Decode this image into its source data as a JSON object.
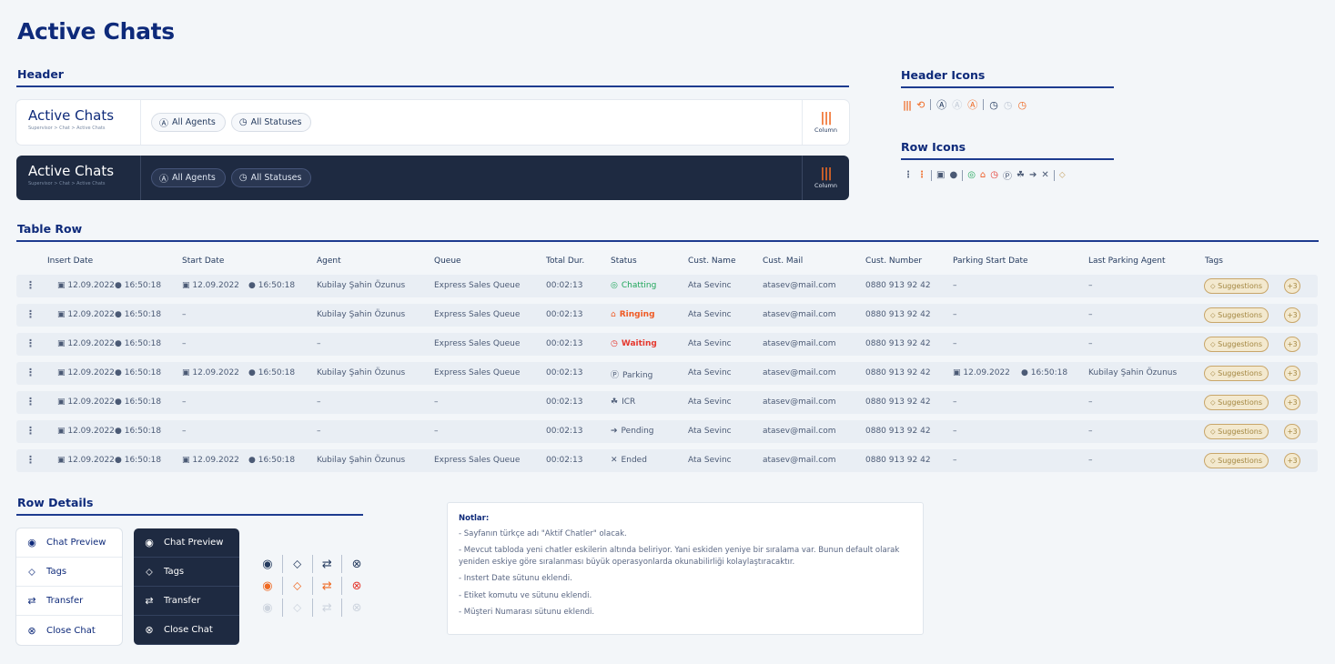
{
  "page_title": "Active Chats",
  "sections": {
    "header": "Header",
    "header_icons": "Header Icons",
    "row_icons": "Row Icons",
    "table_row": "Table Row",
    "row_details": "Row Details"
  },
  "header_card": {
    "title": "Active Chats",
    "breadcrumb": "Supervisor > Chat > Active Chats",
    "chip_agents": "All Agents",
    "chip_statuses": "All Statuses",
    "column_label": "Column"
  },
  "table": {
    "columns": [
      "Insert Date",
      "Start Date",
      "Agent",
      "Queue",
      "Total Dur.",
      "Status",
      "Cust. Name",
      "Cust. Mail",
      "Cust. Number",
      "Parking Start Date",
      "Last Parking Agent",
      "Tags"
    ],
    "rows": [
      {
        "insert_date": "12.09.2022",
        "insert_time": "16:50:18",
        "start_date": "12.09.2022",
        "start_time": "16:50:18",
        "agent": "Kubilay Şahin Özunus",
        "queue": "Express Sales Queue",
        "duration": "00:02:13",
        "status": "Chatting",
        "cust_name": "Ata Sevinc",
        "cust_mail": "atasev@mail.com",
        "cust_number": "0880 913 92 42",
        "parking_start": "–",
        "parking_time": "",
        "last_parking_agent": "–",
        "tag": "Suggestions",
        "more": "+3"
      },
      {
        "insert_date": "12.09.2022",
        "insert_time": "16:50:18",
        "start_date": "–",
        "start_time": "",
        "agent": "Kubilay Şahin Özunus",
        "queue": "Express Sales Queue",
        "duration": "00:02:13",
        "status": "Ringing",
        "cust_name": "Ata Sevinc",
        "cust_mail": "atasev@mail.com",
        "cust_number": "0880 913 92 42",
        "parking_start": "–",
        "parking_time": "",
        "last_parking_agent": "–",
        "tag": "Suggestions",
        "more": "+3"
      },
      {
        "insert_date": "12.09.2022",
        "insert_time": "16:50:18",
        "start_date": "–",
        "start_time": "",
        "agent": "–",
        "queue": "Express Sales Queue",
        "duration": "00:02:13",
        "status": "Waiting",
        "cust_name": "Ata Sevinc",
        "cust_mail": "atasev@mail.com",
        "cust_number": "0880 913 92 42",
        "parking_start": "–",
        "parking_time": "",
        "last_parking_agent": "–",
        "tag": "Suggestions",
        "more": "+3"
      },
      {
        "insert_date": "12.09.2022",
        "insert_time": "16:50:18",
        "start_date": "12.09.2022",
        "start_time": "16:50:18",
        "agent": "Kubilay Şahin Özunus",
        "queue": "Express Sales Queue",
        "duration": "00:02:13",
        "status": "Parking",
        "cust_name": "Ata Sevinc",
        "cust_mail": "atasev@mail.com",
        "cust_number": "0880 913 92 42",
        "parking_start": "12.09.2022",
        "parking_time": "16:50:18",
        "last_parking_agent": "Kubilay Şahin Özunus",
        "tag": "Suggestions",
        "more": "+3"
      },
      {
        "insert_date": "12.09.2022",
        "insert_time": "16:50:18",
        "start_date": "–",
        "start_time": "",
        "agent": "–",
        "queue": "–",
        "duration": "00:02:13",
        "status": "ICR",
        "cust_name": "Ata Sevinc",
        "cust_mail": "atasev@mail.com",
        "cust_number": "0880 913 92 42",
        "parking_start": "–",
        "parking_time": "",
        "last_parking_agent": "–",
        "tag": "Suggestions",
        "more": "+3"
      },
      {
        "insert_date": "12.09.2022",
        "insert_time": "16:50:18",
        "start_date": "–",
        "start_time": "",
        "agent": "–",
        "queue": "–",
        "duration": "00:02:13",
        "status": "Pending",
        "cust_name": "Ata Sevinc",
        "cust_mail": "atasev@mail.com",
        "cust_number": "0880 913 92 42",
        "parking_start": "–",
        "parking_time": "",
        "last_parking_agent": "–",
        "tag": "Suggestions",
        "more": "+3"
      },
      {
        "insert_date": "12.09.2022",
        "insert_time": "16:50:18",
        "start_date": "12.09.2022",
        "start_time": "16:50:18",
        "agent": "Kubilay Şahin Özunus",
        "queue": "Express Sales Queue",
        "duration": "00:02:13",
        "status": "Ended",
        "cust_name": "Ata Sevinc",
        "cust_mail": "atasev@mail.com",
        "cust_number": "0880 913 92 42",
        "parking_start": "–",
        "parking_time": "",
        "last_parking_agent": "–",
        "tag": "Suggestions",
        "more": "+3"
      }
    ]
  },
  "status_styles": {
    "Chatting": {
      "color": "#1fa65a",
      "icon": "chat-bubble-icon"
    },
    "Ringing": {
      "color": "#ef5a24",
      "icon": "bell-icon"
    },
    "Waiting": {
      "color": "#e5392f",
      "icon": "clock-icon"
    },
    "Parking": {
      "color": "#4b5a75",
      "icon": "parking-icon"
    },
    "ICR": {
      "color": "#4b5a75",
      "icon": "network-icon"
    },
    "Pending": {
      "color": "#4b5a75",
      "icon": "forward-circle-icon"
    },
    "Ended": {
      "color": "#4b5a75",
      "icon": "x-icon"
    }
  },
  "row_details": {
    "items": [
      "Chat Preview",
      "Tags",
      "Transfer",
      "Close Chat"
    ]
  },
  "notes": {
    "title": "Notlar:",
    "lines": [
      "- Sayfanın türkçe adı \"Aktif Chatler\" olacak.",
      "- Mevcut tabloda yeni chatler eskilerin altında beliriyor. Yani eskiden yeniye bir sıralama var. Bunun default olarak yeniden eskiye göre sıralanması büyük operasyonlarda okunabilirliği kolaylaştıracaktır.",
      "- Instert Date sütunu eklendi.",
      "- Etiket komutu ve sütunu eklendi.",
      "- Müşteri Numarası sütunu eklendi."
    ]
  },
  "colors": {
    "brand": "#0e2a7a",
    "accent": "#ef6a24",
    "dark_panel": "#1e2a41",
    "tag": "#a38640"
  }
}
